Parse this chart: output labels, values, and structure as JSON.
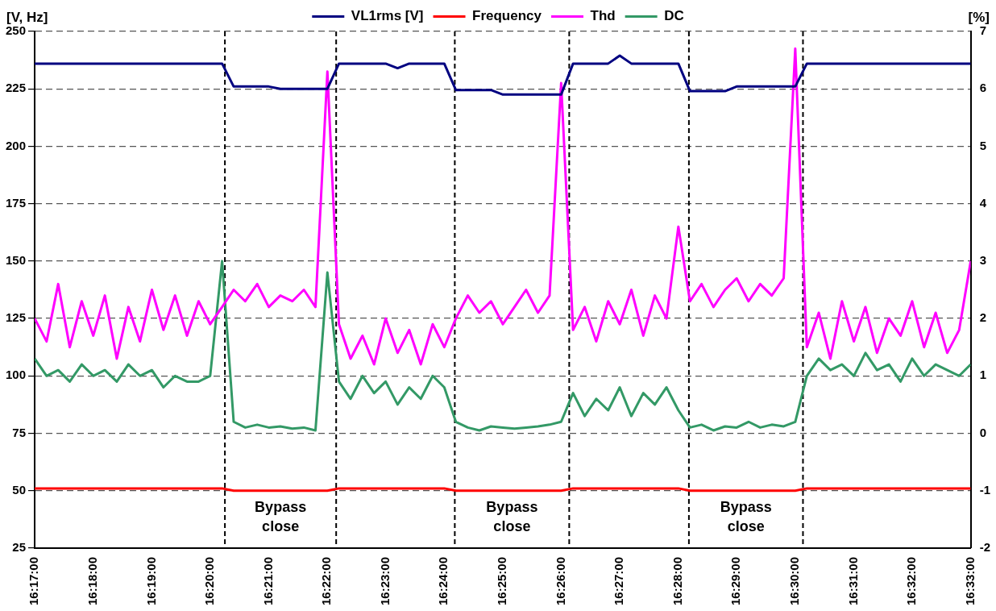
{
  "chart_data": {
    "type": "line",
    "ylabel": "[V, Hz]",
    "y2label": "[%]",
    "x": [
      16.2833,
      16.2867,
      16.29,
      16.2933,
      16.2967,
      16.3,
      16.3033,
      16.3067,
      16.31,
      16.3133,
      16.3167,
      16.32,
      16.3233,
      16.3267,
      16.33,
      16.3333,
      16.3367,
      16.34,
      16.3433,
      16.3467,
      16.35,
      16.3533,
      16.3567,
      16.36,
      16.3633,
      16.3667,
      16.37,
      16.3733,
      16.3767,
      16.38,
      16.3833,
      16.3867,
      16.39,
      16.3933,
      16.3967,
      16.4,
      16.4033,
      16.4067,
      16.41,
      16.4133,
      16.4167,
      16.42,
      16.4233,
      16.4267,
      16.43,
      16.4333,
      16.4367,
      16.44,
      16.4433,
      16.4467,
      16.45,
      16.4533,
      16.4567,
      16.46,
      16.4633,
      16.4667,
      16.47,
      16.4733,
      16.4767,
      16.48,
      16.4833,
      16.4867,
      16.49,
      16.4933,
      16.4967,
      16.5,
      16.5033,
      16.5067,
      16.51,
      16.5133,
      16.5167,
      16.52,
      16.5233,
      16.5267,
      16.53,
      16.5333,
      16.5367,
      16.54,
      16.5433,
      16.5467,
      16.55
    ],
    "series": [
      {
        "name": "VL1rms [V]",
        "color": "#000080",
        "values": [
          236,
          236,
          236,
          236,
          236,
          236,
          236,
          236,
          236,
          236,
          236,
          236,
          236,
          236,
          236,
          236,
          236,
          226,
          226,
          226,
          226,
          225,
          225,
          225,
          225,
          225,
          236,
          236,
          236,
          236,
          236,
          234,
          236,
          236,
          236,
          236,
          224.5,
          224.5,
          224.5,
          224.5,
          222.5,
          222.5,
          222.5,
          222.5,
          222.5,
          222.5,
          236,
          236,
          236,
          236,
          239.5,
          236,
          236,
          236,
          236,
          236,
          224,
          224,
          224,
          224,
          226,
          226,
          226,
          226,
          226,
          226,
          236,
          236,
          236,
          236,
          236,
          236,
          236,
          236,
          236,
          236,
          236,
          236,
          236,
          236,
          236
        ]
      },
      {
        "name": "Frequency",
        "color": "#ff0000",
        "values": [
          51,
          51,
          51,
          51,
          51,
          51,
          51,
          51,
          51,
          51,
          51,
          51,
          51,
          51,
          51,
          51,
          51,
          50,
          50,
          50,
          50,
          50,
          50,
          50,
          50,
          50,
          51,
          51,
          51,
          51,
          51,
          51,
          51,
          51,
          51,
          51,
          50,
          50,
          50,
          50,
          50,
          50,
          50,
          50,
          50,
          50,
          51,
          51,
          51,
          51,
          51,
          51,
          51,
          51,
          51,
          51,
          50,
          50,
          50,
          50,
          50,
          50,
          50,
          50,
          50,
          50,
          51,
          51,
          51,
          51,
          51,
          51,
          51,
          51,
          51,
          51,
          51,
          51,
          51,
          51,
          51
        ]
      },
      {
        "name": "Thd",
        "color": "#ff00ff",
        "axis": "y2",
        "values": [
          2.0,
          1.6,
          2.6,
          1.5,
          2.3,
          1.7,
          2.4,
          1.3,
          2.2,
          1.6,
          2.5,
          1.8,
          2.4,
          1.7,
          2.3,
          1.9,
          2.2,
          2.5,
          2.3,
          2.6,
          2.2,
          2.4,
          2.3,
          2.5,
          2.2,
          6.3,
          1.9,
          1.3,
          1.7,
          1.2,
          2.0,
          1.4,
          1.8,
          1.2,
          1.9,
          1.5,
          2.0,
          2.4,
          2.1,
          2.3,
          1.9,
          2.2,
          2.5,
          2.1,
          2.4,
          6.1,
          1.8,
          2.2,
          1.6,
          2.3,
          1.9,
          2.5,
          1.7,
          2.4,
          2.0,
          3.6,
          2.3,
          2.6,
          2.2,
          2.5,
          2.7,
          2.3,
          2.6,
          2.4,
          2.7,
          6.7,
          1.5,
          2.1,
          1.3,
          2.3,
          1.6,
          2.2,
          1.4,
          2.0,
          1.7,
          2.3,
          1.5,
          2.1,
          1.4,
          1.8,
          3.0
        ]
      },
      {
        "name": "DC",
        "color": "#339966",
        "axis": "y2",
        "values": [
          1.3,
          1.0,
          1.1,
          0.9,
          1.2,
          1.0,
          1.1,
          0.9,
          1.2,
          1.0,
          1.1,
          0.8,
          1.0,
          0.9,
          0.9,
          1.0,
          3.0,
          0.2,
          0.1,
          0.15,
          0.1,
          0.12,
          0.08,
          0.1,
          0.05,
          2.8,
          0.9,
          0.6,
          1.0,
          0.7,
          0.9,
          0.5,
          0.8,
          0.6,
          1.0,
          0.8,
          0.2,
          0.1,
          0.05,
          0.12,
          0.1,
          0.08,
          0.1,
          0.12,
          0.15,
          0.2,
          0.7,
          0.3,
          0.6,
          0.4,
          0.8,
          0.3,
          0.7,
          0.5,
          0.8,
          0.4,
          0.1,
          0.15,
          0.05,
          0.12,
          0.1,
          0.2,
          0.1,
          0.15,
          0.12,
          0.2,
          1.0,
          1.3,
          1.1,
          1.2,
          1.0,
          1.4,
          1.1,
          1.2,
          0.9,
          1.3,
          1.0,
          1.2,
          1.1,
          1.0,
          1.2
        ]
      }
    ],
    "xlim": [
      16.2833,
      16.55
    ],
    "xticks": [
      {
        "value": 16.2833,
        "label": "16:17:00"
      },
      {
        "value": 16.3,
        "label": "16:18:00"
      },
      {
        "value": 16.316667,
        "label": "16:19:00"
      },
      {
        "value": 16.333333,
        "label": "16:20:00"
      },
      {
        "value": 16.35,
        "label": "16:21:00"
      },
      {
        "value": 16.366667,
        "label": "16:22:00"
      },
      {
        "value": 16.383333,
        "label": "16:23:00"
      },
      {
        "value": 16.4,
        "label": "16:24:00"
      },
      {
        "value": 16.416667,
        "label": "16:25:00"
      },
      {
        "value": 16.433333,
        "label": "16:26:00"
      },
      {
        "value": 16.45,
        "label": "16:27:00"
      },
      {
        "value": 16.466667,
        "label": "16:28:00"
      },
      {
        "value": 16.483333,
        "label": "16:29:00"
      },
      {
        "value": 16.5,
        "label": "16:30:00"
      },
      {
        "value": 16.516667,
        "label": "16:31:00"
      },
      {
        "value": 16.533333,
        "label": "16:32:00"
      },
      {
        "value": 16.55,
        "label": "16:33:00"
      }
    ],
    "ylim": [
      25,
      250
    ],
    "yticks": [
      25,
      50,
      75,
      100,
      125,
      150,
      175,
      200,
      225,
      250
    ],
    "y2lim": [
      -2,
      7
    ],
    "y2ticks": [
      -2,
      -1,
      0,
      1,
      2,
      3,
      4,
      5,
      6,
      7
    ],
    "ref_lines": [
      {
        "axis": "x",
        "value": 16.3375,
        "color": "#000000",
        "line_style": "dashed"
      },
      {
        "axis": "x",
        "value": 16.3692,
        "color": "#000000",
        "line_style": "dashed"
      },
      {
        "axis": "x",
        "value": 16.403,
        "color": "#000000",
        "line_style": "dashed"
      },
      {
        "axis": "x",
        "value": 16.4356,
        "color": "#000000",
        "line_style": "dashed"
      },
      {
        "axis": "x",
        "value": 16.4697,
        "color": "#000000",
        "line_style": "dashed"
      },
      {
        "axis": "x",
        "value": 16.5022,
        "color": "#000000",
        "line_style": "dashed"
      }
    ],
    "annotations": [
      "Bypass close",
      "Bypass close",
      "Bypass close"
    ],
    "grid": "y",
    "legend": "top",
    "line_style": "solid"
  }
}
